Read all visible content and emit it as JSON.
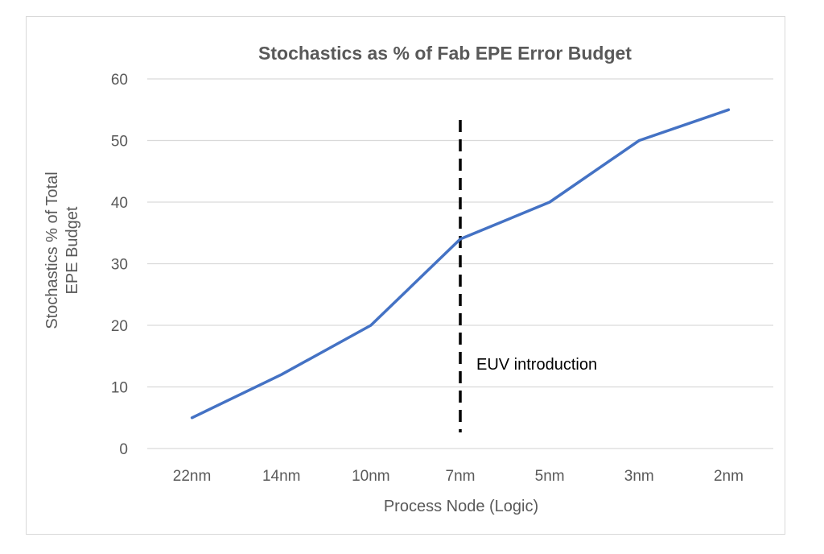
{
  "chart_data": {
    "type": "line",
    "title": "Stochastics as % of Fab EPE Error Budget",
    "xlabel": "Process Node (Logic)",
    "ylabel": [
      "Stochastics % of Total",
      "EPE Budget"
    ],
    "categories": [
      "22nm",
      "14nm",
      "10nm",
      "7nm",
      "5nm",
      "3nm",
      "2nm"
    ],
    "series": [
      {
        "values": [
          5,
          12,
          20,
          34,
          40,
          50,
          55
        ],
        "color": "#4472c4"
      }
    ],
    "ylim": [
      0,
      60
    ],
    "yticks": [
      "0",
      "10",
      "20",
      "30",
      "40",
      "50",
      "60"
    ],
    "grid": true,
    "legend": "none",
    "annotations": [
      {
        "text": "EUV introduction",
        "marker": "dashed vertical line at 7nm",
        "color": "#000000"
      }
    ]
  }
}
